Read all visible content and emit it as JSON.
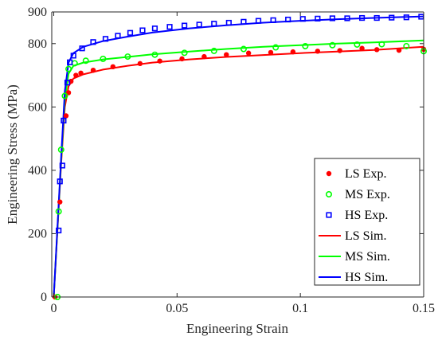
{
  "chart_data": {
    "type": "scatter",
    "xlabel": "Engineering Strain",
    "ylabel": "Engineering Stress (MPa)",
    "xlim": [
      0,
      0.15
    ],
    "ylim": [
      0,
      900
    ],
    "xticks": [
      0,
      0.05,
      0.1,
      0.15
    ],
    "xtick_labels": [
      "0",
      "0.05",
      "0.1",
      "0.15"
    ],
    "yticks": [
      0,
      200,
      400,
      600,
      800,
      900
    ],
    "ytick_labels": [
      "0",
      "200",
      "400",
      "600",
      "800",
      "900"
    ],
    "grid": false,
    "legend_position": "bottom-right",
    "series": [
      {
        "name": "LS Exp.",
        "kind": "scatter",
        "marker": "dot",
        "color": "#ff0000",
        "x": [
          0.0005,
          0.0025,
          0.005,
          0.006,
          0.007,
          0.009,
          0.011,
          0.016,
          0.024,
          0.035,
          0.043,
          0.052,
          0.061,
          0.07,
          0.079,
          0.088,
          0.097,
          0.107,
          0.116,
          0.125,
          0.131,
          0.14,
          0.15
        ],
        "y": [
          0,
          300,
          572,
          645,
          681,
          700,
          707,
          716,
          727,
          737,
          745,
          752,
          759,
          765,
          770,
          772,
          774,
          776,
          778,
          785,
          781,
          779,
          782
        ]
      },
      {
        "name": "MS Exp.",
        "kind": "scatter",
        "marker": "circle",
        "color": "#00ff00",
        "x": [
          0.0015,
          0.002,
          0.003,
          0.0045,
          0.006,
          0.0085,
          0.013,
          0.02,
          0.03,
          0.041,
          0.053,
          0.065,
          0.077,
          0.09,
          0.102,
          0.113,
          0.123,
          0.133,
          0.143,
          0.15
        ],
        "y": [
          0,
          270,
          465,
          635,
          720,
          738,
          746,
          752,
          759,
          765,
          771,
          777,
          783,
          788,
          792,
          795,
          797,
          798,
          792,
          776
        ]
      },
      {
        "name": "HS Exp.",
        "kind": "scatter",
        "marker": "square",
        "color": "#0000ff",
        "x": [
          0.002,
          0.0025,
          0.0035,
          0.004,
          0.0055,
          0.0065,
          0.008,
          0.0115,
          0.016,
          0.021,
          0.026,
          0.031,
          0.036,
          0.041,
          0.047,
          0.053,
          0.059,
          0.065,
          0.071,
          0.077,
          0.083,
          0.089,
          0.095,
          0.101,
          0.107,
          0.113,
          0.119,
          0.125,
          0.131,
          0.137,
          0.143,
          0.149
        ],
        "y": [
          210,
          365,
          415,
          557,
          677,
          741,
          762,
          785,
          805,
          815,
          825,
          834,
          842,
          848,
          853,
          857,
          860,
          863,
          866,
          869,
          872,
          874,
          876,
          878,
          879,
          880,
          880,
          881,
          881,
          882,
          883,
          885
        ]
      },
      {
        "name": "LS Sim.",
        "kind": "line",
        "color": "#ff0000",
        "x": [
          0,
          0.003,
          0.0045,
          0.006,
          0.008,
          0.012,
          0.02,
          0.03,
          0.04,
          0.055,
          0.07,
          0.085,
          0.1,
          0.115,
          0.13,
          0.15
        ],
        "y": [
          0,
          420,
          600,
          665,
          690,
          703,
          718,
          730,
          740,
          750,
          758,
          764,
          770,
          775,
          780,
          790
        ]
      },
      {
        "name": "MS Sim.",
        "kind": "line",
        "color": "#00ff00",
        "x": [
          0,
          0.003,
          0.0045,
          0.006,
          0.008,
          0.012,
          0.02,
          0.03,
          0.04,
          0.055,
          0.07,
          0.085,
          0.1,
          0.115,
          0.13,
          0.15
        ],
        "y": [
          0,
          430,
          625,
          705,
          730,
          740,
          750,
          758,
          766,
          775,
          783,
          790,
          795,
          800,
          804,
          810
        ]
      },
      {
        "name": "HS Sim.",
        "kind": "line",
        "color": "#0000ff",
        "x": [
          0,
          0.003,
          0.0045,
          0.006,
          0.008,
          0.012,
          0.02,
          0.03,
          0.04,
          0.055,
          0.07,
          0.085,
          0.1,
          0.115,
          0.13,
          0.15
        ],
        "y": [
          0,
          440,
          650,
          740,
          770,
          790,
          808,
          822,
          835,
          848,
          858,
          866,
          872,
          877,
          881,
          886
        ]
      }
    ]
  }
}
